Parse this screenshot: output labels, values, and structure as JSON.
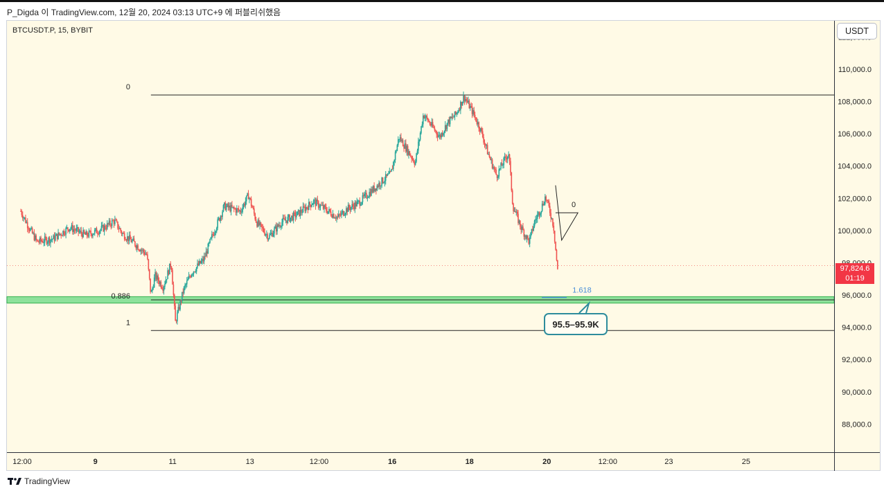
{
  "header": {
    "text": "P_Digda 이 TradingView.com, 12월 20, 2024 03:13 UTC+9 에 퍼블리쉬했음"
  },
  "symbol": "BTCUSDT.P, 15, BYBIT",
  "currency_label": "USDT",
  "footer_brand": "TradingView",
  "price_tag": {
    "price": "97,824.6",
    "countdown": "01:19"
  },
  "callout": "95.5–95.9K",
  "colors": {
    "up": "#26a69a",
    "down": "#ef5350",
    "background": "#fffae6",
    "zone": "#5ed67a",
    "callout": "#2d8c9c",
    "price_tag": "#f23645"
  },
  "chart_data": {
    "type": "candlestick",
    "symbol": "BTCUSDT.P",
    "interval": "15",
    "exchange": "BYBIT",
    "ylim": [
      86300,
      113000
    ],
    "y_ticks": [
      "88,000.0",
      "90,000.0",
      "92,000.0",
      "94,000.0",
      "96,000.0",
      "98,000.0",
      "100,000.0",
      "102,000.0",
      "104,000.0",
      "106,000.0",
      "108,000.0",
      "110,000.0",
      "112,000.0"
    ],
    "y_tick_values": [
      88000,
      90000,
      92000,
      94000,
      96000,
      98000,
      100000,
      102000,
      104000,
      106000,
      108000,
      110000,
      112000
    ],
    "x_ticks": [
      "12:00",
      "9",
      "11",
      "13",
      "12:00",
      "16",
      "18",
      "20",
      "12:00",
      "23",
      "25"
    ],
    "x_ticks_bold": [
      false,
      true,
      false,
      false,
      false,
      true,
      true,
      true,
      false,
      false,
      false
    ],
    "x_tick_pos": [
      0.0,
      0.09,
      0.185,
      0.28,
      0.365,
      0.455,
      0.55,
      0.645,
      0.72,
      0.795,
      0.89
    ],
    "price_path": [
      [
        0.0,
        101200
      ],
      [
        0.012,
        100000
      ],
      [
        0.02,
        99300
      ],
      [
        0.04,
        99500
      ],
      [
        0.06,
        100200
      ],
      [
        0.08,
        99700
      ],
      [
        0.1,
        100100
      ],
      [
        0.115,
        100600
      ],
      [
        0.125,
        99800
      ],
      [
        0.14,
        99200
      ],
      [
        0.155,
        98500
      ],
      [
        0.16,
        96000
      ],
      [
        0.165,
        97200
      ],
      [
        0.175,
        96500
      ],
      [
        0.185,
        98000
      ],
      [
        0.19,
        94300
      ],
      [
        0.2,
        96300
      ],
      [
        0.21,
        97400
      ],
      [
        0.225,
        98200
      ],
      [
        0.235,
        99600
      ],
      [
        0.25,
        101500
      ],
      [
        0.27,
        101200
      ],
      [
        0.28,
        102200
      ],
      [
        0.29,
        100500
      ],
      [
        0.305,
        99600
      ],
      [
        0.32,
        100500
      ],
      [
        0.34,
        101000
      ],
      [
        0.36,
        101800
      ],
      [
        0.375,
        101300
      ],
      [
        0.39,
        100800
      ],
      [
        0.4,
        101300
      ],
      [
        0.415,
        101700
      ],
      [
        0.43,
        102400
      ],
      [
        0.445,
        103100
      ],
      [
        0.455,
        103500
      ],
      [
        0.465,
        105800
      ],
      [
        0.475,
        105000
      ],
      [
        0.485,
        104200
      ],
      [
        0.495,
        107200
      ],
      [
        0.505,
        106500
      ],
      [
        0.515,
        105800
      ],
      [
        0.525,
        106700
      ],
      [
        0.535,
        107200
      ],
      [
        0.545,
        108300
      ],
      [
        0.555,
        107400
      ],
      [
        0.565,
        106300
      ],
      [
        0.575,
        104700
      ],
      [
        0.585,
        103400
      ],
      [
        0.595,
        104400
      ],
      [
        0.6,
        104800
      ],
      [
        0.605,
        101500
      ],
      [
        0.615,
        100200
      ],
      [
        0.625,
        99300
      ],
      [
        0.632,
        100600
      ],
      [
        0.64,
        101400
      ],
      [
        0.645,
        102100
      ],
      [
        0.65,
        101300
      ],
      [
        0.655,
        100300
      ],
      [
        0.66,
        97500
      ]
    ],
    "fib_levels": [
      {
        "label": "0",
        "price": 108400
      },
      {
        "label": "0.886",
        "price": 95700
      },
      {
        "label": "1",
        "price": 93800
      },
      {
        "label": "1.618",
        "price": 95850
      },
      {
        "label": "0",
        "price": 101100
      }
    ],
    "zone": {
      "from": 95500,
      "to": 95900,
      "label": "95.5–95.9K"
    },
    "last_price": 97824.6,
    "countdown": "01:19",
    "grid": false
  }
}
